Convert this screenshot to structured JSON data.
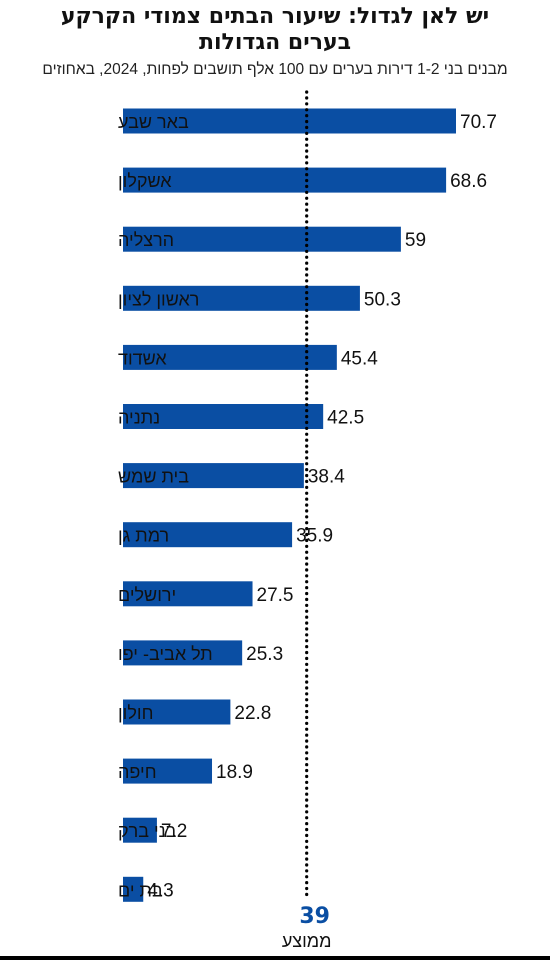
{
  "title_line1": "יש לאן לגדול: שיעור הבתים צמודי הקרקע",
  "title_line2": "בערים הגדולות",
  "subtitle": "מבנים בני 1-2 דירות בערים עם 100 אלף תושבים לפחות, 2024, באחוזים",
  "colors": {
    "bar": "#0a4ea3",
    "average_value": "#0a4ea3",
    "average_line": "#000000"
  },
  "chart_data": {
    "type": "bar",
    "orientation": "horizontal",
    "title": "יש לאן לגדול: שיעור הבתים צמודי הקרקע בערים הגדולות",
    "subtitle": "מבנים בני 1-2 דירות בערים עם 100 אלף תושבים לפחות, 2024, באחוזים",
    "categories": [
      "באר שבע",
      "אשקלון",
      "הרצליה",
      "ראשון לציון",
      "אשדוד",
      "נתניה",
      "בית שמש",
      "רמת גן",
      "ירושלים",
      "תל אביב- יפו",
      "חולון",
      "חיפה",
      "בני ברק",
      "בת ים"
    ],
    "values": [
      70.7,
      68.6,
      59,
      50.3,
      45.4,
      42.5,
      38.4,
      35.9,
      27.5,
      25.3,
      22.8,
      18.9,
      7.2,
      4.3
    ],
    "value_labels": [
      "70.7",
      "68.6",
      "59",
      "50.3",
      "45.4",
      "42.5",
      "38.4",
      "35.9",
      "27.5",
      "25.3",
      "22.8",
      "18.9",
      "7.2",
      "4.3"
    ],
    "reference_line": {
      "value": 39,
      "value_label": "39",
      "label": "ממוצע"
    },
    "xlim": [
      0,
      70.7
    ],
    "grid": false,
    "legend": "none"
  }
}
